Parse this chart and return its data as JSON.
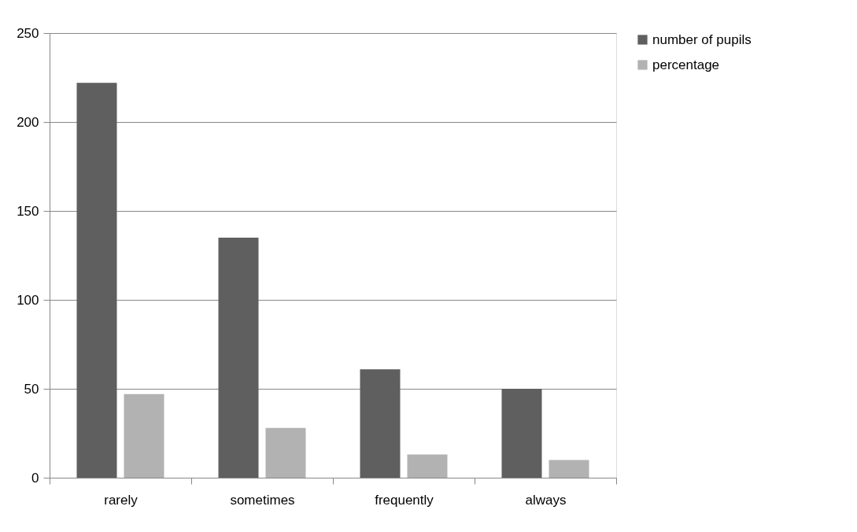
{
  "chart_data": {
    "type": "bar",
    "categories": [
      "rarely",
      "sometimes",
      "frequently",
      "always"
    ],
    "series": [
      {
        "name": "number of pupils",
        "color": "#5f5f5f",
        "values": [
          222,
          135,
          61,
          50
        ]
      },
      {
        "name": "percentage",
        "color": "#b2b2b2",
        "values": [
          47,
          28,
          13,
          10
        ]
      }
    ],
    "ylim": [
      0,
      250
    ],
    "yticks": [
      0,
      50,
      100,
      150,
      200,
      250
    ],
    "grid": "y",
    "legend": "right"
  }
}
